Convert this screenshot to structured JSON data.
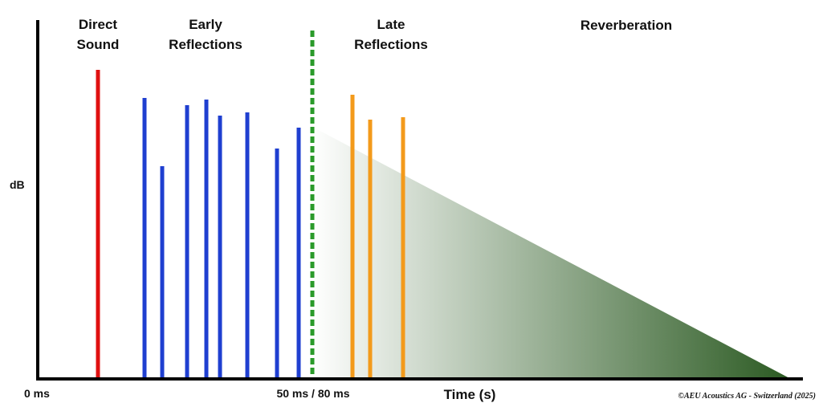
{
  "regions": {
    "direct_sound": [
      "Direct",
      "Sound"
    ],
    "early_reflections": [
      "Early",
      "Reflections"
    ],
    "late_reflections": [
      "Late",
      "Reflections"
    ],
    "reverberation": "Reverberation"
  },
  "axes": {
    "y_label": "dB",
    "x_start": "0 ms",
    "x_boundary": "50 ms / 80 ms",
    "x_label": "Time (s)"
  },
  "copyright": "©AEU Acoustics AG - Switzerland (2025)"
}
